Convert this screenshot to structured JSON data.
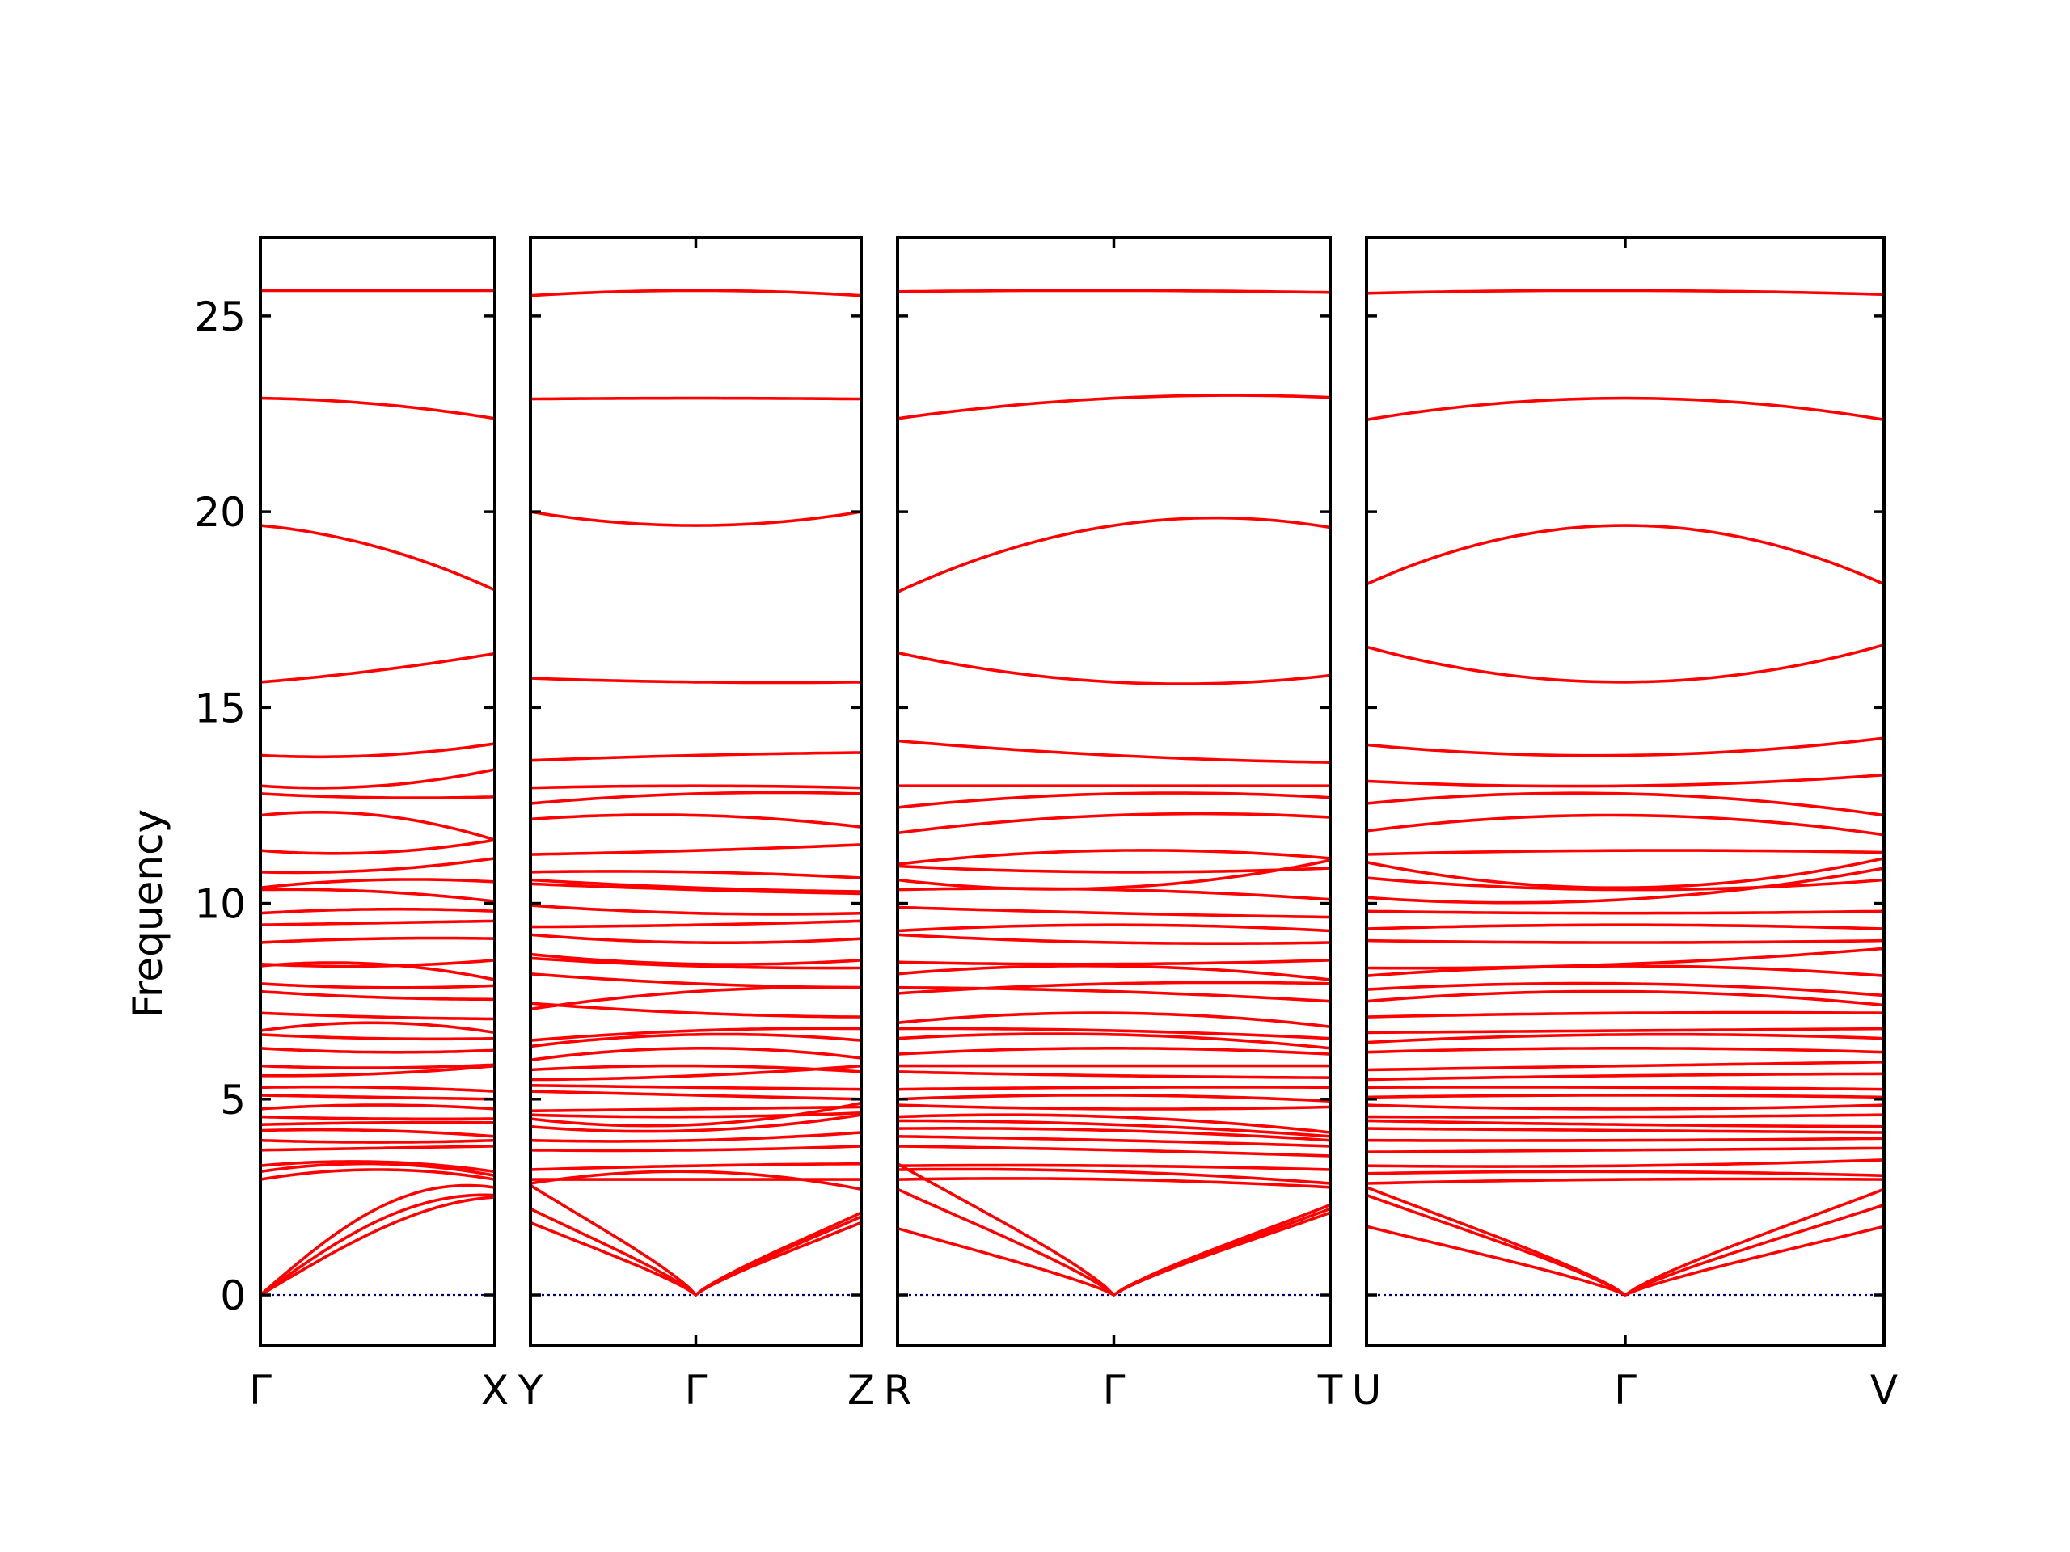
{
  "chart_data": {
    "type": "line",
    "title": "",
    "ylabel": "Frequency",
    "xlabel": "",
    "ylim": [
      -1.3,
      27
    ],
    "yticks": [
      0,
      5,
      10,
      15,
      20,
      25
    ],
    "ytick_labels": [
      "0",
      "5",
      "10",
      "15",
      "20",
      "25"
    ],
    "grid": false,
    "colors": {
      "bands": "#ff0000",
      "zero_line": "#00008b",
      "frame": "#000000"
    },
    "panels": [
      {
        "kpoint_labels": [
          "Γ",
          "X"
        ],
        "left_label": "Γ",
        "middle_label": "",
        "right_label": "X",
        "bands": [
          [
            25.65,
            25.65,
            25.65
          ],
          [
            22.9,
            22.75,
            22.38
          ],
          [
            19.65,
            19.1,
            18.0
          ],
          [
            15.65,
            15.95,
            16.38
          ],
          [
            13.78,
            13.78,
            14.08
          ],
          [
            13.0,
            13.0,
            13.42
          ],
          [
            12.8,
            12.7,
            12.72
          ],
          [
            12.25,
            12.25,
            11.62
          ],
          [
            11.35,
            11.3,
            11.62
          ],
          [
            10.8,
            10.85,
            11.15
          ],
          [
            10.4,
            10.6,
            10.55
          ],
          [
            10.35,
            10.3,
            10.05
          ],
          [
            9.75,
            9.85,
            9.8
          ],
          [
            9.45,
            9.5,
            9.55
          ],
          [
            9.0,
            9.1,
            9.1
          ],
          [
            8.45,
            8.4,
            8.55
          ],
          [
            8.4,
            8.45,
            8.05
          ],
          [
            7.95,
            7.85,
            7.9
          ],
          [
            7.75,
            7.6,
            7.55
          ],
          [
            7.2,
            7.1,
            7.05
          ],
          [
            6.75,
            6.95,
            6.7
          ],
          [
            6.65,
            6.55,
            6.55
          ],
          [
            6.3,
            6.2,
            6.25
          ],
          [
            5.85,
            5.8,
            5.88
          ],
          [
            5.6,
            5.65,
            5.85
          ],
          [
            5.3,
            5.3,
            5.2
          ],
          [
            5.1,
            5.05,
            5.0
          ],
          [
            4.75,
            4.85,
            4.75
          ],
          [
            4.55,
            4.5,
            4.5
          ],
          [
            4.35,
            4.4,
            4.4
          ],
          [
            4.2,
            4.2,
            4.05
          ],
          [
            3.95,
            3.9,
            3.95
          ],
          [
            3.7,
            3.75,
            3.8
          ],
          [
            3.3,
            3.4,
            3.15
          ],
          [
            3.15,
            3.35,
            3.05
          ],
          [
            2.95,
            3.2,
            2.95
          ],
          [
            0.0,
            2.85,
            2.8
          ],
          [
            0.0,
            2.1,
            2.6
          ],
          [
            0.0,
            1.4,
            2.55
          ]
        ]
      },
      {
        "kpoint_labels": [
          "Y",
          "Γ",
          "Z"
        ],
        "left_label": "Y",
        "middle_label": "Γ",
        "right_label": "Z",
        "bands": [
          [
            25.52,
            25.65,
            25.52
          ],
          [
            22.88,
            22.9,
            22.88
          ],
          [
            20.0,
            19.65,
            20.0
          ],
          [
            15.75,
            15.65,
            15.65
          ],
          [
            13.65,
            13.78,
            13.85
          ],
          [
            12.95,
            13.0,
            12.95
          ],
          [
            12.55,
            12.8,
            12.8
          ],
          [
            12.15,
            12.25,
            11.95
          ],
          [
            11.25,
            11.35,
            11.5
          ],
          [
            10.8,
            10.8,
            10.65
          ],
          [
            10.6,
            10.4,
            10.3
          ],
          [
            10.5,
            10.35,
            10.25
          ],
          [
            9.95,
            9.75,
            9.75
          ],
          [
            9.4,
            9.45,
            9.55
          ],
          [
            9.2,
            9.0,
            9.1
          ],
          [
            8.7,
            8.45,
            8.55
          ],
          [
            8.6,
            8.4,
            8.35
          ],
          [
            8.2,
            7.95,
            7.85
          ],
          [
            7.3,
            7.75,
            7.85
          ],
          [
            7.45,
            7.2,
            7.1
          ],
          [
            6.5,
            6.75,
            6.8
          ],
          [
            6.35,
            6.65,
            6.5
          ],
          [
            6.0,
            6.3,
            6.05
          ],
          [
            5.75,
            5.85,
            5.7
          ],
          [
            5.5,
            5.6,
            5.85
          ],
          [
            5.35,
            5.3,
            5.25
          ],
          [
            5.2,
            5.1,
            5.0
          ],
          [
            4.7,
            4.75,
            4.8
          ],
          [
            4.6,
            4.55,
            4.65
          ],
          [
            4.5,
            4.35,
            4.9
          ],
          [
            4.3,
            4.2,
            4.6
          ],
          [
            3.95,
            3.95,
            4.15
          ],
          [
            3.7,
            3.7,
            3.8
          ],
          [
            3.2,
            3.3,
            3.35
          ],
          [
            2.85,
            3.15,
            2.7
          ],
          [
            2.95,
            2.95,
            2.95
          ],
          [
            2.2,
            0.0,
            2.1
          ],
          [
            1.85,
            0.0,
            1.85
          ],
          [
            2.8,
            0.0,
            2.0
          ]
        ]
      },
      {
        "kpoint_labels": [
          "R",
          "Γ",
          "T"
        ],
        "left_label": "R",
        "middle_label": "Γ",
        "right_label": "T",
        "bands": [
          [
            25.62,
            25.65,
            25.6
          ],
          [
            22.38,
            22.9,
            22.92
          ],
          [
            17.95,
            19.65,
            19.6
          ],
          [
            16.4,
            15.65,
            15.82
          ],
          [
            14.15,
            13.78,
            13.6
          ],
          [
            13.0,
            13.0,
            13.0
          ],
          [
            12.45,
            12.8,
            12.7
          ],
          [
            11.8,
            12.25,
            12.2
          ],
          [
            11.0,
            11.35,
            11.15
          ],
          [
            10.95,
            10.8,
            10.9
          ],
          [
            10.6,
            10.4,
            11.1
          ],
          [
            10.35,
            10.35,
            10.1
          ],
          [
            9.9,
            9.75,
            9.65
          ],
          [
            9.3,
            9.45,
            9.3
          ],
          [
            9.2,
            9.0,
            9.0
          ],
          [
            8.5,
            8.45,
            8.55
          ],
          [
            8.2,
            8.4,
            8.05
          ],
          [
            7.7,
            7.95,
            7.95
          ],
          [
            7.85,
            7.75,
            7.5
          ],
          [
            6.95,
            7.2,
            6.85
          ],
          [
            6.8,
            6.75,
            6.55
          ],
          [
            6.55,
            6.65,
            6.3
          ],
          [
            6.15,
            6.3,
            6.15
          ],
          [
            5.85,
            5.85,
            5.85
          ],
          [
            5.7,
            5.6,
            5.55
          ],
          [
            5.25,
            5.3,
            5.3
          ],
          [
            5.0,
            5.1,
            4.95
          ],
          [
            4.85,
            4.75,
            4.8
          ],
          [
            4.55,
            4.55,
            4.15
          ],
          [
            4.45,
            4.35,
            4.05
          ],
          [
            4.25,
            4.2,
            3.95
          ],
          [
            4.05,
            3.95,
            3.8
          ],
          [
            3.8,
            3.7,
            3.55
          ],
          [
            3.3,
            3.3,
            3.2
          ],
          [
            3.2,
            3.15,
            2.85
          ],
          [
            2.95,
            2.95,
            2.75
          ],
          [
            1.7,
            0.0,
            2.3
          ],
          [
            3.35,
            0.0,
            2.1
          ],
          [
            2.7,
            0.0,
            2.2
          ]
        ]
      },
      {
        "kpoint_labels": [
          "U",
          "Γ",
          "V"
        ],
        "left_label": "U",
        "middle_label": "Γ",
        "right_label": "V",
        "bands": [
          [
            25.58,
            25.65,
            25.55
          ],
          [
            22.35,
            22.9,
            22.35
          ],
          [
            18.15,
            19.65,
            18.15
          ],
          [
            16.55,
            15.65,
            16.6
          ],
          [
            14.05,
            13.78,
            14.22
          ],
          [
            13.12,
            13.0,
            13.28
          ],
          [
            12.55,
            12.8,
            12.25
          ],
          [
            11.85,
            12.25,
            11.75
          ],
          [
            11.25,
            11.35,
            11.3
          ],
          [
            11.05,
            10.4,
            11.15
          ],
          [
            10.65,
            10.35,
            10.6
          ],
          [
            10.15,
            10.1,
            10.9
          ],
          [
            9.8,
            9.75,
            9.8
          ],
          [
            9.35,
            9.45,
            9.35
          ],
          [
            9.05,
            9.0,
            9.05
          ],
          [
            8.35,
            8.45,
            8.85
          ],
          [
            8.15,
            8.4,
            8.15
          ],
          [
            7.8,
            7.95,
            7.65
          ],
          [
            7.5,
            7.75,
            7.4
          ],
          [
            7.1,
            7.2,
            7.2
          ],
          [
            6.7,
            6.75,
            6.8
          ],
          [
            6.45,
            6.65,
            6.55
          ],
          [
            6.2,
            6.3,
            6.2
          ],
          [
            5.75,
            5.85,
            5.95
          ],
          [
            5.5,
            5.6,
            5.65
          ],
          [
            5.3,
            5.3,
            5.25
          ],
          [
            5.05,
            5.1,
            5.05
          ],
          [
            4.85,
            4.75,
            4.85
          ],
          [
            4.55,
            4.55,
            4.6
          ],
          [
            4.45,
            4.35,
            4.3
          ],
          [
            4.25,
            4.2,
            4.15
          ],
          [
            3.95,
            3.95,
            4.0
          ],
          [
            3.65,
            3.7,
            3.75
          ],
          [
            3.3,
            3.3,
            3.45
          ],
          [
            3.1,
            3.15,
            3.05
          ],
          [
            2.85,
            2.95,
            2.95
          ],
          [
            1.75,
            0.0,
            1.75
          ],
          [
            2.75,
            0.0,
            2.7
          ],
          [
            2.55,
            0.0,
            2.3
          ]
        ]
      }
    ]
  }
}
